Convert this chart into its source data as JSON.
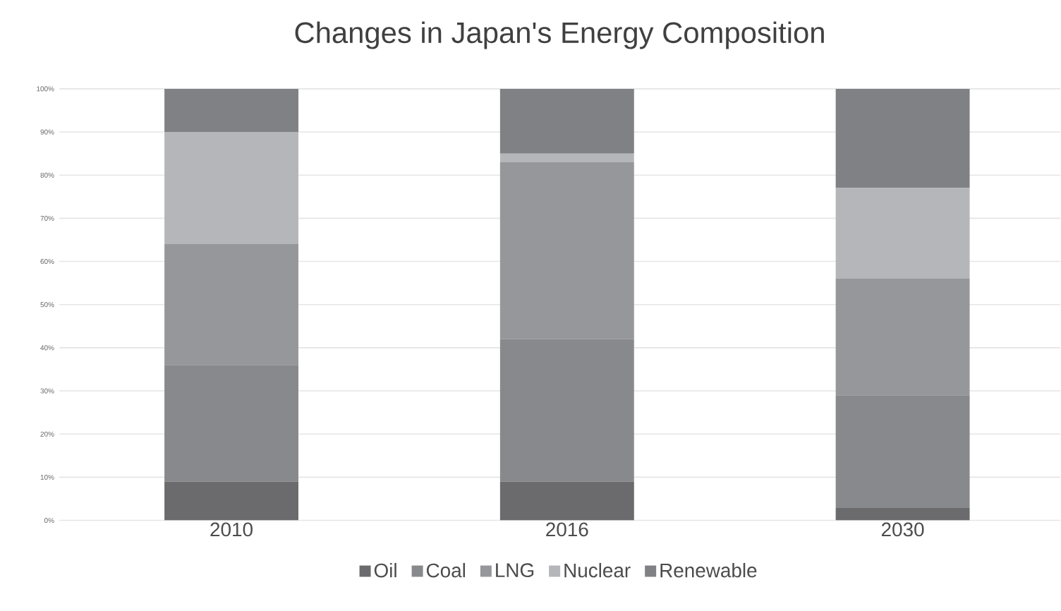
{
  "chart_data": {
    "type": "bar",
    "title": "Changes in Japan's Energy Composition",
    "categories": [
      "2010",
      "2016",
      "2030"
    ],
    "stacked": true,
    "series": [
      {
        "name": "Oil",
        "color": "#6b6b6e",
        "values": [
          9,
          9,
          3
        ]
      },
      {
        "name": "Coal",
        "color": "#88898c",
        "values": [
          27,
          33,
          26
        ]
      },
      {
        "name": "LNG",
        "color": "#96979a",
        "values": [
          28,
          41,
          27
        ]
      },
      {
        "name": "Nuclear",
        "color": "#b5b6b9",
        "values": [
          26,
          2,
          21
        ]
      },
      {
        "name": "Renewable",
        "color": "#808185",
        "values": [
          10,
          15,
          23
        ]
      }
    ],
    "ylim": [
      0,
      100
    ],
    "yticks": [
      {
        "value": 0,
        "label": "0%"
      },
      {
        "value": 10,
        "label": "10%"
      },
      {
        "value": 20,
        "label": "20%"
      },
      {
        "value": 30,
        "label": "30%"
      },
      {
        "value": 40,
        "label": "40%"
      },
      {
        "value": 50,
        "label": "50%"
      },
      {
        "value": 60,
        "label": "60%"
      },
      {
        "value": 70,
        "label": "70%"
      },
      {
        "value": 80,
        "label": "80%"
      },
      {
        "value": 90,
        "label": "90%"
      },
      {
        "value": 100,
        "label": "100%"
      }
    ],
    "grid": "y",
    "legend": "bottom"
  }
}
